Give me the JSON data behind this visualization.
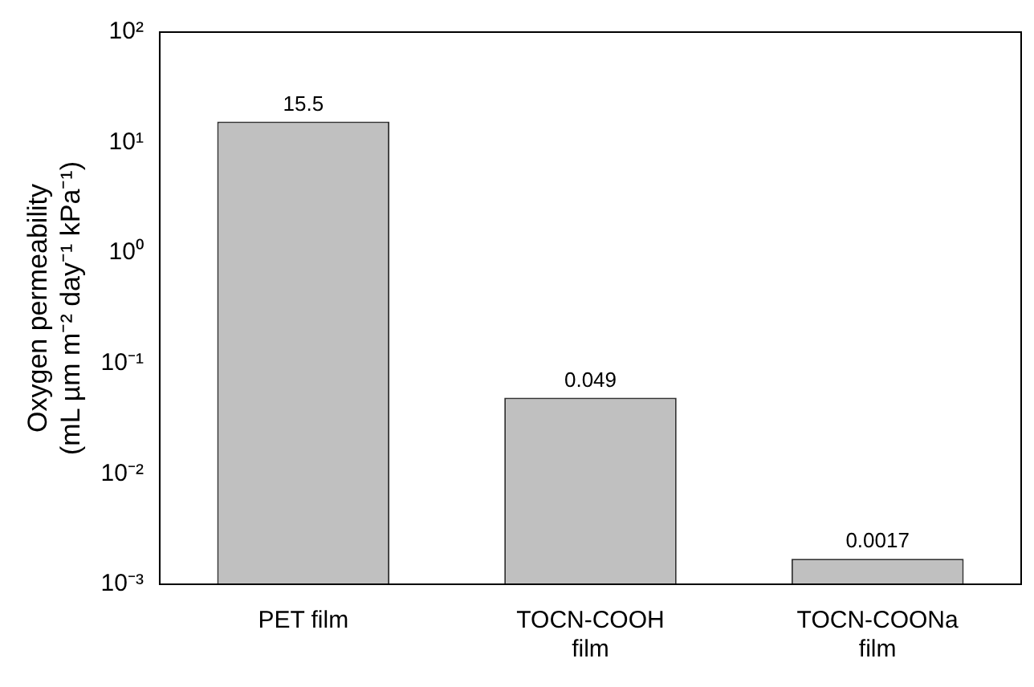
{
  "chart_data": {
    "type": "bar",
    "ylabel": "Oxygen permeability\n(mL µm m⁻² day⁻¹ kPa⁻¹)",
    "categories": [
      "PET film",
      "TOCN-COOH film",
      "TOCN-COONa film"
    ],
    "values": [
      15.5,
      0.049,
      0.0017
    ],
    "value_labels": [
      "15.5",
      "0.049",
      "0.0017"
    ],
    "color": "#c0c0c0",
    "log": "y",
    "ylim": [
      0.001,
      100
    ],
    "yticks": [
      {
        "value": 0.001,
        "label": "10⁻³"
      },
      {
        "value": 0.01,
        "label": "10⁻²"
      },
      {
        "value": 0.1,
        "label": "10⁻¹"
      },
      {
        "value": 1,
        "label": "10⁰"
      },
      {
        "value": 10,
        "label": "10¹"
      },
      {
        "value": 100,
        "label": "10²"
      }
    ],
    "grid": false,
    "legend": false
  }
}
